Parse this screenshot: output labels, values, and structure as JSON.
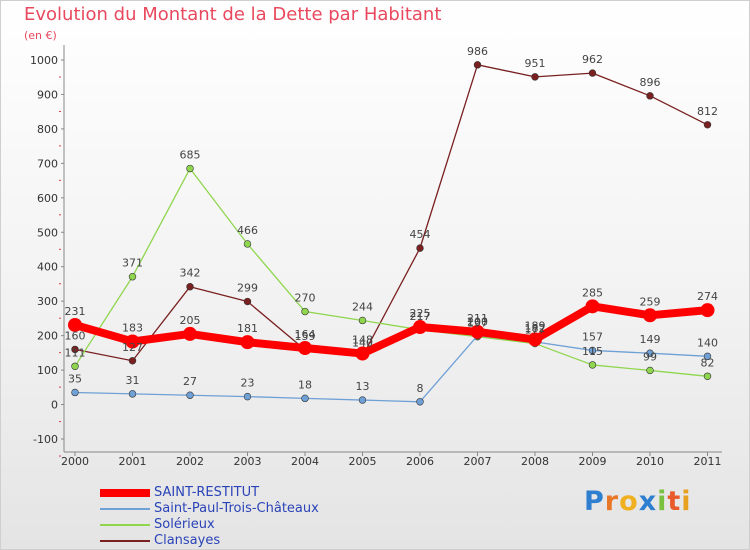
{
  "chart_data": {
    "type": "line",
    "title": "Evolution du Montant de la Dette par Habitant",
    "subtitle": "(en €)",
    "categories": [
      "2000",
      "2001",
      "2002",
      "2003",
      "2004",
      "2005",
      "2006",
      "2007",
      "2008",
      "2009",
      "2010",
      "2011"
    ],
    "ylim": [
      -100,
      1000
    ],
    "yticks": [
      "-100",
      "0",
      "100",
      "200",
      "300",
      "400",
      "500",
      "600",
      "700",
      "800",
      "900",
      "1000"
    ],
    "grid": false,
    "legend_position": "bottom-left",
    "series": [
      {
        "name": "SAINT-RESTITUT",
        "color": "#ff0000",
        "values": [
          231,
          183,
          205,
          181,
          164,
          148,
          225,
          211,
          189,
          285,
          259,
          274
        ],
        "labels": [
          "231",
          "183",
          "205",
          "181",
          "164",
          "148",
          "225",
          "211",
          "189",
          "285",
          "259",
          "274"
        ]
      },
      {
        "name": "Saint-Paul-Trois-Châteaux",
        "color": "#6fa0d6",
        "values": [
          35,
          31,
          27,
          23,
          18,
          13,
          8,
          200,
          182,
          157,
          149,
          140
        ],
        "labels": [
          "35",
          "31",
          "27",
          "23",
          "18",
          "13",
          "8",
          "200",
          "182",
          "157",
          "149",
          "140"
        ]
      },
      {
        "name": "Solérieux",
        "color": "#8fd64e",
        "values": [
          111,
          371,
          685,
          466,
          270,
          244,
          217,
          197,
          177,
          115,
          99,
          82
        ],
        "labels": [
          "111",
          "371",
          "685",
          "466",
          "270",
          "244",
          "217",
          "197",
          "177",
          "115",
          "99",
          "82"
        ]
      },
      {
        "name": "Clansayes",
        "color": "#7a2020",
        "values": [
          160,
          127,
          342,
          299,
          159,
          140,
          454,
          986,
          951,
          962,
          896,
          812
        ],
        "labels": [
          "160",
          "127",
          "342",
          "299",
          "159",
          "140",
          "454",
          "986",
          "951",
          "962",
          "896",
          "812"
        ]
      }
    ]
  },
  "logo": {
    "letters": [
      "P",
      "r",
      "o",
      "x",
      "i",
      "t",
      "i"
    ],
    "colors": [
      "#2e7fd0",
      "#e8772a",
      "#f0b020",
      "#2e7fd0",
      "#7cc040",
      "#e85a2a",
      "#e8a020"
    ]
  }
}
